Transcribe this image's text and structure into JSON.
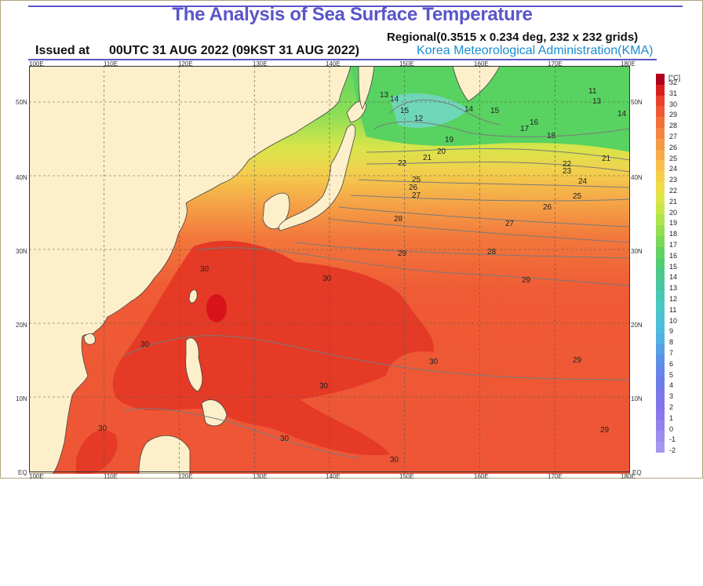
{
  "header": {
    "title": "The Analysis of Sea Surface Temperature",
    "issued_label": "Issued at",
    "issued_time": "00UTC 31 AUG 2022 (09KST 31 AUG 2022)",
    "grid_info": "Regional(0.3515 x 0.234 deg, 232 x 232 grids)",
    "agency": "Korea Meteorological Administration(KMA)"
  },
  "map": {
    "region": "Northwest Pacific",
    "lon_labels": [
      "100E",
      "110E",
      "120E",
      "130E",
      "140E",
      "150E",
      "160E",
      "170E",
      "180E"
    ],
    "lat_labels": [
      "EQ",
      "10N",
      "20N",
      "30N",
      "40N",
      "50N"
    ],
    "contour_labels": [
      "13",
      "14",
      "15",
      "16",
      "17",
      "18",
      "21",
      "22",
      "23",
      "24",
      "25",
      "26",
      "27",
      "28",
      "29",
      "30",
      "12",
      "11",
      "20",
      "19"
    ],
    "colors": {
      "land": "#fcefc9",
      "warm": "#ef4b32",
      "hot": "#e3281f",
      "grid": "#666666",
      "contour": "#7a7a7a"
    }
  },
  "colorbar": {
    "unit": "[°C]",
    "labels": [
      "32",
      "31",
      "30",
      "29",
      "28",
      "27",
      "26",
      "25",
      "24",
      "23",
      "22",
      "21",
      "20",
      "19",
      "18",
      "17",
      "16",
      "15",
      "14",
      "13",
      "12",
      "11",
      "10",
      "9",
      "8",
      "7",
      "6",
      "5",
      "4",
      "3",
      "2",
      "1",
      "0",
      "-1",
      "-2"
    ],
    "colors": [
      "#b0001a",
      "#d81e1e",
      "#e8412c",
      "#ef5a34",
      "#f2703a",
      "#f48440",
      "#f49a46",
      "#f6ac4a",
      "#f8bf4d",
      "#f5cf4a",
      "#eedc48",
      "#dce44a",
      "#c7e64a",
      "#aee44c",
      "#94de52",
      "#7cd858",
      "#64d262",
      "#54cc72",
      "#4cc88a",
      "#48c6a0",
      "#48c8b4",
      "#4ac8c6",
      "#4cc2d2",
      "#4ebcdc",
      "#52b2e2",
      "#589fe4",
      "#5e90e6",
      "#6686e8",
      "#6e7ee8",
      "#7878ea",
      "#8276ea",
      "#8a78ea",
      "#9482ec",
      "#9c8cee",
      "#a696f0"
    ]
  }
}
